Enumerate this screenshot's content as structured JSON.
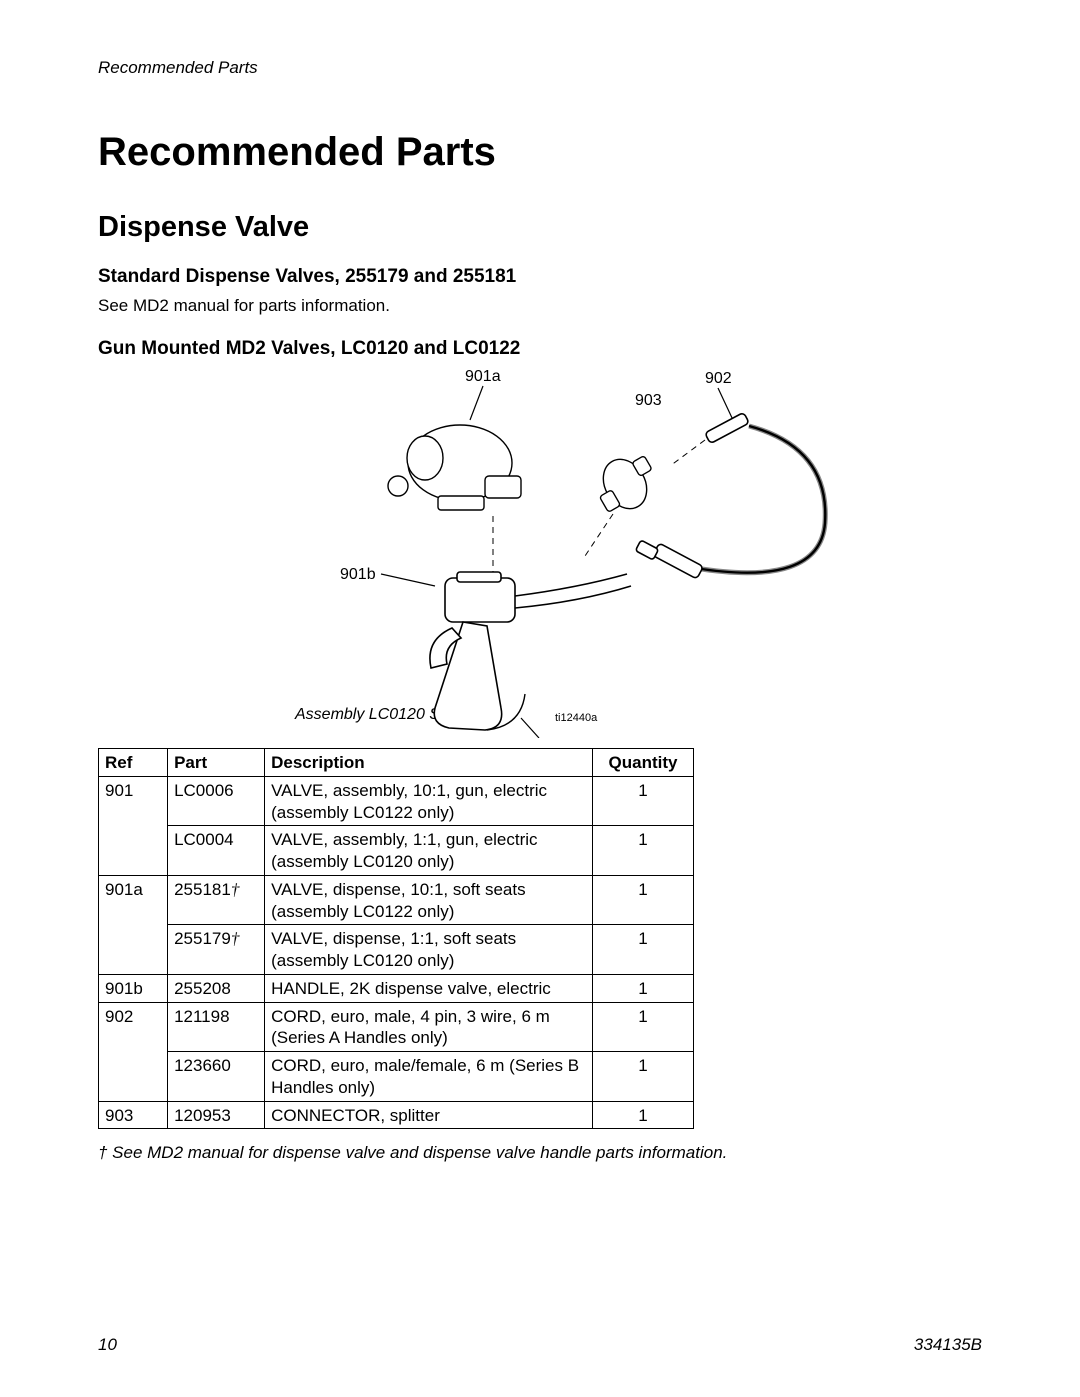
{
  "header": {
    "running": "Recommended Parts"
  },
  "title": "Recommended Parts",
  "section": "Dispense Valve",
  "sub1": {
    "title": "Standard Dispense Valves, 255179 and 255181",
    "text": "See MD2 manual for parts information."
  },
  "sub2": {
    "title": "Gun Mounted MD2 Valves, LC0120 and LC0122"
  },
  "diagram": {
    "callouts": {
      "c901a": "901a",
      "c902": "902",
      "c903": "903",
      "c901b": "901b"
    },
    "caption": "Assembly LC0120 Shown",
    "figref": "ti12440a"
  },
  "table": {
    "headers": {
      "ref": "Ref",
      "part": "Part",
      "desc": "Description",
      "qty": "Quantity"
    },
    "rows": [
      {
        "ref": "901",
        "part": "LC0006",
        "dagger": false,
        "desc": "VALVE, assembly, 10:1, gun, electric (assembly LC0122 only)",
        "qty": "1"
      },
      {
        "ref": "",
        "part": "LC0004",
        "dagger": false,
        "desc": "VALVE, assembly, 1:1, gun, electric (assembly LC0120 only)",
        "qty": "1"
      },
      {
        "ref": "901a",
        "part": "255181",
        "dagger": true,
        "desc": "VALVE, dispense, 10:1, soft seats (assembly LC0122 only)",
        "qty": "1"
      },
      {
        "ref": "",
        "part": "255179",
        "dagger": true,
        "desc": "VALVE, dispense, 1:1, soft seats (assembly LC0120 only)",
        "qty": "1"
      },
      {
        "ref": "901b",
        "part": "255208",
        "dagger": false,
        "desc": "HANDLE, 2K dispense valve, electric",
        "qty": "1"
      },
      {
        "ref": "902",
        "part": "121198",
        "dagger": false,
        "desc": "CORD, euro, male, 4 pin, 3 wire, 6 m (Series A Handles only)",
        "qty": "1"
      },
      {
        "ref": "",
        "part": "123660",
        "dagger": false,
        "desc": "CORD, euro, male/female, 6 m (Series B Handles only)",
        "qty": "1"
      },
      {
        "ref": "903",
        "part": "120953",
        "dagger": false,
        "desc": "CONNECTOR, splitter",
        "qty": "1"
      }
    ]
  },
  "footnote": "†   See MD2 manual for dispense valve and dispense valve handle parts information.",
  "footer": {
    "page": "10",
    "doc": "334135B"
  }
}
